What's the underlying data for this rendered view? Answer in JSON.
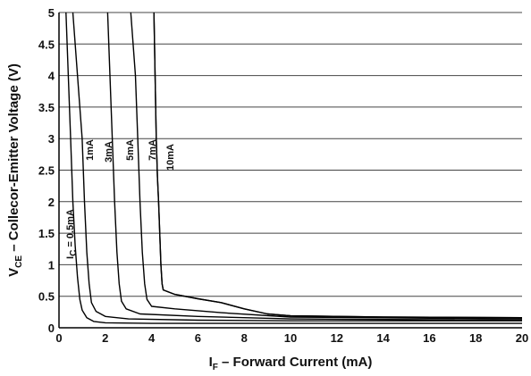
{
  "chart_data": {
    "type": "line",
    "xlabel": {
      "main": "I",
      "sub": "F",
      "rest": " – Forward Current  (mA)"
    },
    "ylabel": {
      "main": "V",
      "sub": "CE",
      "rest": " – Collecor-Emitter Voltage  (V)"
    },
    "xlim": [
      0,
      20
    ],
    "ylim": [
      0,
      5
    ],
    "x_ticks": [
      0,
      2,
      4,
      6,
      8,
      10,
      12,
      14,
      16,
      18,
      20
    ],
    "y_ticks": [
      0,
      0.5,
      1,
      1.5,
      2,
      2.5,
      3,
      3.5,
      4,
      4.5,
      5
    ],
    "x_tick_labels": [
      "0",
      "2",
      "4",
      "6",
      "8",
      "10",
      "12",
      "14",
      "16",
      "18",
      "20"
    ],
    "y_tick_labels": [
      "0",
      "0.5",
      "1",
      "1.5",
      "2",
      "2.5",
      "3",
      "3.5",
      "4",
      "4.5",
      "5"
    ],
    "grid": "horizontal",
    "line_color": "#000000",
    "series": [
      {
        "name": "I_C = 0.5mA",
        "label_main": "I",
        "label_sub": "C",
        "label_rest": " = 0.5mA",
        "points": [
          [
            0.3,
            5
          ],
          [
            0.4,
            4
          ],
          [
            0.5,
            3
          ],
          [
            0.6,
            2
          ],
          [
            0.7,
            1.3
          ],
          [
            0.8,
            0.8
          ],
          [
            0.9,
            0.45
          ],
          [
            1.0,
            0.28
          ],
          [
            1.2,
            0.16
          ],
          [
            1.5,
            0.1
          ],
          [
            2,
            0.08
          ],
          [
            4,
            0.07
          ],
          [
            10,
            0.07
          ],
          [
            20,
            0.07
          ]
        ]
      },
      {
        "name": "1mA",
        "points": [
          [
            0.6,
            5
          ],
          [
            0.8,
            4
          ],
          [
            1.0,
            3
          ],
          [
            1.1,
            2
          ],
          [
            1.2,
            1.2
          ],
          [
            1.3,
            0.7
          ],
          [
            1.4,
            0.4
          ],
          [
            1.6,
            0.26
          ],
          [
            2,
            0.18
          ],
          [
            3,
            0.14
          ],
          [
            6,
            0.12
          ],
          [
            10,
            0.11
          ],
          [
            20,
            0.11
          ]
        ]
      },
      {
        "name": "3mA",
        "points": [
          [
            2.1,
            5
          ],
          [
            2.2,
            4
          ],
          [
            2.3,
            3
          ],
          [
            2.4,
            2
          ],
          [
            2.5,
            1.2
          ],
          [
            2.6,
            0.7
          ],
          [
            2.7,
            0.42
          ],
          [
            2.9,
            0.3
          ],
          [
            3.5,
            0.22
          ],
          [
            6,
            0.18
          ],
          [
            10,
            0.14
          ],
          [
            20,
            0.12
          ]
        ]
      },
      {
        "name": "5mA",
        "points": [
          [
            3.1,
            5
          ],
          [
            3.3,
            4
          ],
          [
            3.4,
            3
          ],
          [
            3.5,
            2
          ],
          [
            3.6,
            1.2
          ],
          [
            3.7,
            0.7
          ],
          [
            3.8,
            0.45
          ],
          [
            4.0,
            0.34
          ],
          [
            5,
            0.3
          ],
          [
            7,
            0.24
          ],
          [
            10,
            0.17
          ],
          [
            20,
            0.14
          ]
        ]
      },
      {
        "name": "7mA",
        "points": [
          [
            4.1,
            5
          ],
          [
            4.15,
            4
          ],
          [
            4.2,
            3
          ],
          [
            4.25,
            2.4
          ],
          [
            4.3,
            2
          ],
          [
            4.35,
            1.5
          ],
          [
            4.4,
            1
          ],
          [
            4.45,
            0.7
          ],
          [
            4.5,
            0.6
          ],
          [
            5,
            0.53
          ],
          [
            6,
            0.46
          ],
          [
            7,
            0.4
          ],
          [
            8,
            0.3
          ],
          [
            9,
            0.22
          ],
          [
            10,
            0.19
          ],
          [
            14,
            0.17
          ],
          [
            20,
            0.16
          ]
        ]
      },
      {
        "name": "10mA",
        "points": [
          [
            4.1,
            5
          ],
          [
            4.15,
            4
          ],
          [
            4.2,
            3
          ],
          [
            4.25,
            2.4
          ],
          [
            4.3,
            2
          ],
          [
            4.35,
            1.5
          ],
          [
            4.4,
            1
          ],
          [
            4.45,
            0.7
          ],
          [
            4.5,
            0.6
          ],
          [
            5,
            0.53
          ],
          [
            6,
            0.46
          ],
          [
            7,
            0.4
          ],
          [
            8,
            0.3
          ],
          [
            9,
            0.22
          ],
          [
            10,
            0.19
          ],
          [
            14,
            0.17
          ],
          [
            20,
            0.16
          ]
        ]
      }
    ],
    "annotations": [
      "1mA",
      "3mA",
      "5mA",
      "7mA",
      "10mA"
    ]
  }
}
